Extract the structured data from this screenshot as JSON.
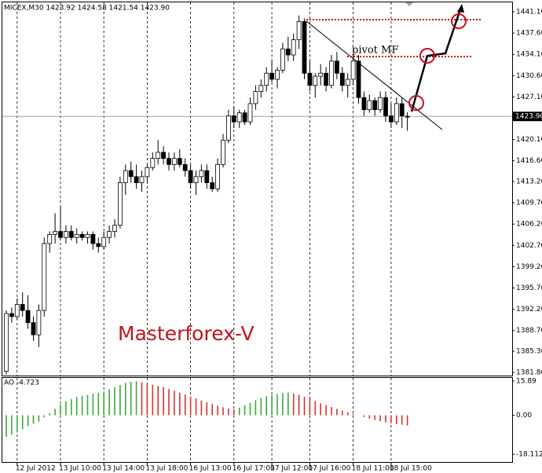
{
  "chart_data": [
    {
      "type": "candlestick",
      "title": "MICEX,M30 1423.92 1424.58 1421.54 1423.90",
      "annotations": [
        "pivot MF",
        "Masterforex-V"
      ],
      "categories": [
        null,
        null,
        "12 Jul 2012",
        null,
        null,
        null,
        null,
        null,
        null,
        null,
        "13 Jul 10:00",
        null,
        null,
        null,
        null,
        null,
        null,
        null,
        "13 Jul 14:00",
        null,
        null,
        null,
        null,
        null,
        null,
        null,
        "13 Jul 18:00",
        null,
        null,
        null,
        null,
        null,
        null,
        null,
        "16 Jul 13:00",
        null,
        null,
        null,
        null,
        null,
        null,
        null,
        "16 Jul 17:00",
        null,
        null,
        null,
        null,
        null,
        null,
        "17 Jul 12:00",
        null,
        null,
        null,
        null,
        null,
        null,
        "17 Jul 16:00",
        null,
        null,
        null,
        null,
        null,
        null,
        null,
        "18 Jul 11:00",
        null,
        null,
        null,
        null,
        null,
        null,
        "18 Jul 15:00",
        null,
        null,
        null
      ],
      "open": [
        1382,
        1391.5,
        1391,
        1393,
        1392,
        1390,
        1388,
        1392,
        1403,
        1404.5,
        1405,
        1404,
        1405,
        1404,
        1404.5,
        1404,
        1404.5,
        1403,
        1402.5,
        1404,
        1405,
        1406,
        1413,
        1415,
        1414,
        1413,
        1414,
        1415.5,
        1417,
        1418,
        1417,
        1416,
        1417,
        1416,
        1415,
        1413,
        1414,
        1415,
        1413,
        1412,
        1416,
        1420,
        1424,
        1423,
        1424.5,
        1423,
        1426,
        1428,
        1429,
        1431,
        1430,
        1431.5,
        1435,
        1434,
        1436.5,
        1439.5,
        1431,
        1429,
        1430.5,
        1431,
        1429,
        1433,
        1431,
        1429,
        1430,
        1433,
        1427,
        1425,
        1426.5,
        1425,
        1427,
        1424,
        1423,
        1426,
        1423.92
      ],
      "high": [
        1392,
        1392.5,
        1394,
        1395,
        1394.5,
        1391,
        1393,
        1404,
        1405,
        1408,
        1409,
        1406,
        1406,
        1405.5,
        1405,
        1405,
        1405,
        1404,
        1405,
        1406,
        1407,
        1414,
        1416,
        1416.5,
        1416,
        1415,
        1416,
        1418,
        1420,
        1419,
        1418,
        1418,
        1418.5,
        1417,
        1416,
        1415,
        1416,
        1416,
        1414,
        1417,
        1421,
        1425,
        1425.5,
        1425,
        1425,
        1427,
        1429,
        1430,
        1432,
        1433,
        1432,
        1436,
        1437,
        1437.5,
        1440.5,
        1440,
        1433,
        1431,
        1432.5,
        1432,
        1434,
        1434.5,
        1432,
        1431,
        1434,
        1434,
        1428,
        1427.5,
        1427,
        1428,
        1428,
        1426,
        1427,
        1427,
        1424.58
      ],
      "low": [
        1381.5,
        1390,
        1390.5,
        1391,
        1389,
        1387,
        1386,
        1391,
        1401.5,
        1403,
        1403.5,
        1403,
        1403.5,
        1403,
        1403.5,
        1403,
        1402,
        1401.5,
        1402,
        1403,
        1404,
        1405.5,
        1411,
        1413,
        1412,
        1411.5,
        1413,
        1415,
        1416,
        1416,
        1415,
        1415,
        1415.5,
        1414,
        1412,
        1411,
        1413,
        1412,
        1411.5,
        1411.5,
        1415.5,
        1419.5,
        1422,
        1422,
        1422.5,
        1422.5,
        1425,
        1427,
        1428,
        1429.5,
        1428.5,
        1431,
        1433,
        1433,
        1435,
        1430,
        1428,
        1427,
        1429,
        1428,
        1428.5,
        1430,
        1428,
        1427,
        1429,
        1426,
        1424,
        1424.5,
        1424,
        1424.5,
        1423,
        1422,
        1422.5,
        1422,
        1421.54
      ],
      "close": [
        1391.5,
        1391,
        1393,
        1392,
        1390,
        1388,
        1392,
        1403,
        1404.5,
        1405,
        1404,
        1405,
        1404,
        1404.5,
        1404,
        1404.5,
        1403,
        1402.5,
        1404,
        1405,
        1406,
        1413,
        1415,
        1414,
        1413,
        1414,
        1415.5,
        1417,
        1418,
        1417,
        1416,
        1417,
        1416,
        1415,
        1413,
        1414,
        1415,
        1413,
        1412,
        1416,
        1420,
        1424,
        1423,
        1424.5,
        1423,
        1426,
        1428,
        1429,
        1431,
        1430,
        1431.5,
        1435,
        1434,
        1436.5,
        1439.5,
        1431,
        1429,
        1430.5,
        1431,
        1429,
        1433,
        1431,
        1429,
        1430,
        1433,
        1427,
        1425,
        1426.5,
        1425,
        1427,
        1424,
        1423,
        1426,
        1424,
        1423.9
      ],
      "current_price": {
        "value": 1423.9,
        "label": "1423.90"
      },
      "up_color": "#ffffff",
      "down_color": "#000000",
      "ylim": [
        1381.3,
        1442.65
      ],
      "yticks": [
        {
          "value": 1441.1,
          "label": "1441.10"
        },
        {
          "value": 1437.6,
          "label": "1437.60"
        },
        {
          "value": 1434.1,
          "label": "1434.10"
        },
        {
          "value": 1430.6,
          "label": "1430.60"
        },
        {
          "value": 1427.1,
          "label": "1427.10"
        },
        {
          "value": 1420.1,
          "label": "1420.10"
        },
        {
          "value": 1416.6,
          "label": "1416.60"
        },
        {
          "value": 1413.2,
          "label": "1413.20"
        },
        {
          "value": 1409.7,
          "label": "1409.70"
        },
        {
          "value": 1406.2,
          "label": "1406.20"
        },
        {
          "value": 1402.7,
          "label": "1402.70"
        },
        {
          "value": 1399.2,
          "label": "1399.20"
        },
        {
          "value": 1395.7,
          "label": "1395.70"
        },
        {
          "value": 1392.2,
          "label": "1392.20"
        },
        {
          "value": 1388.7,
          "label": "1388.70"
        },
        {
          "value": 1385.3,
          "label": "1385.30"
        },
        {
          "value": 1381.8,
          "label": "1381.80"
        }
      ]
    },
    {
      "type": "bar",
      "title": "AO -4.723",
      "values": [
        -10,
        -9,
        -8,
        -6.5,
        -5,
        -4,
        -3,
        -1,
        1,
        3,
        5,
        6.5,
        7.5,
        8.5,
        9,
        9.5,
        10,
        10.5,
        11,
        12,
        13,
        14,
        15,
        15.5,
        15.8,
        15.3,
        14.8,
        14.2,
        13.6,
        13,
        12.2,
        11.4,
        10.5,
        9.6,
        8.7,
        7.8,
        6.9,
        6,
        5.2,
        4.4,
        3.7,
        3.2,
        2.8,
        3.5,
        4.6,
        5.8,
        7,
        8,
        8.8,
        9.4,
        9.9,
        10.3,
        10.6,
        10.2,
        9.5,
        8.6,
        7.6,
        6.6,
        5.6,
        4.7,
        3.8,
        3,
        2.2,
        1.4,
        0.7,
        0,
        -0.8,
        -1.5,
        -2.2,
        -2.8,
        -3.3,
        -3.7,
        -4.1,
        -4.4,
        -4.723
      ],
      "up_color": "#3aa83a",
      "down_color": "#e03030",
      "ylim": [
        -21.7,
        17.33
      ],
      "yticks": [
        15.89,
        {
          "value": 0,
          "label": "0.00"
        },
        -18.112
      ]
    }
  ]
}
